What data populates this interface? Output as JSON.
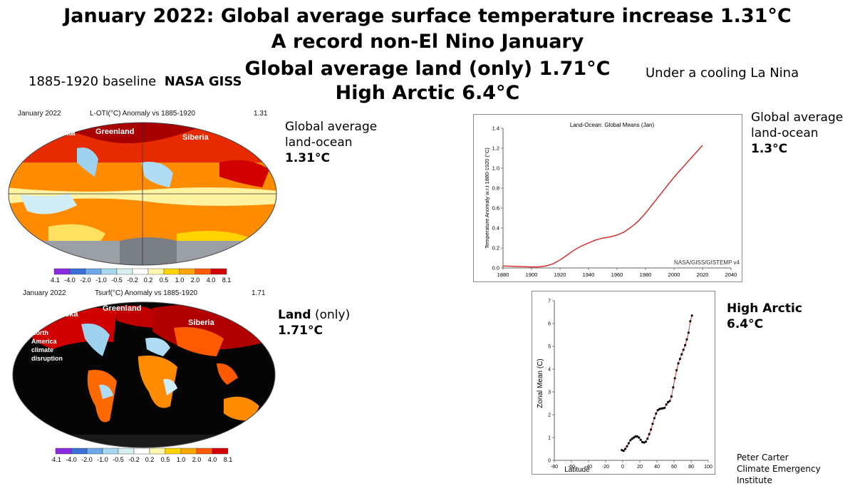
{
  "titles": [
    "January 2022: Global average surface temperature increase 1.31°C",
    "A record non-El Nino January",
    "Global average land (only) 1.71°C",
    "High Arctic 6.4°C"
  ],
  "baseline_note": {
    "plain": "1885-1920 baseline",
    "bold": "NASA GISS"
  },
  "la_nina_note": "Under a cooling La Nina",
  "map1": {
    "header_left": "January 2022",
    "header_center": "L-OTI(°C) Anomaly vs 1885-1920",
    "header_right": "1.31",
    "labels": [
      "Alaska",
      "Greenland",
      "Siberia"
    ],
    "colorbar": [
      "-4.1",
      "-4.0",
      "-2.0",
      "-1.0",
      "-0.5",
      "-0.2",
      "0.2",
      "0.5",
      "1.0",
      "2.0",
      "4.0",
      "8.1"
    ],
    "colorbar_colors": [
      "#8a2be2",
      "#3a6fd8",
      "#6fa8e8",
      "#a8d8f0",
      "#d8f0f0",
      "#ffffff",
      "#fff7b0",
      "#ffd400",
      "#ffa500",
      "#ff5a00",
      "#d40000"
    ]
  },
  "map2": {
    "header_left": "January 2022",
    "header_center": "Tsurf(°C) Anomaly vs 1885-1920",
    "header_right": "1.71",
    "labels": [
      "Alaska",
      "Greenland",
      "Siberia"
    ],
    "annotation": [
      "North",
      "America",
      "climate",
      "disruption"
    ],
    "colorbar": [
      "-4.1",
      "-4.0",
      "-2.0",
      "-1.0",
      "-0.5",
      "-0.2",
      "0.2",
      "0.5",
      "1.0",
      "2.0",
      "4.0",
      "8.1"
    ]
  },
  "side_notes": {
    "land_ocean_map": {
      "lines": [
        "Global average",
        "land-ocean"
      ],
      "value": "1.31°C"
    },
    "land_map": {
      "bold": "Land",
      "plain": " (only)",
      "value": "1.71°C"
    },
    "land_ocean_chart": {
      "lines": [
        "Global average",
        "land-ocean"
      ],
      "value": "1.3°C"
    },
    "arctic_chart": {
      "lines": [
        "High Arctic"
      ],
      "value": "6.4°C"
    }
  },
  "credit": [
    "Peter Carter",
    "Climate Emergency Institute"
  ],
  "colors": {
    "line": "#e02020",
    "points": "#000000"
  },
  "chart_data": [
    {
      "type": "line",
      "title": "Land-Ocean: Global Means (Jan)",
      "ylabel": "Temperature Anomaly w.r.t 1880-1920 (°C)",
      "xlabel": "",
      "source_label": "NASA/GISS/GISTEMP v4",
      "xlim": [
        1880,
        2040
      ],
      "ylim": [
        0,
        1.4
      ],
      "x_ticks": [
        1880,
        1900,
        1920,
        1940,
        1960,
        1980,
        2000,
        2020,
        2040
      ],
      "y_ticks": [
        "0.0",
        "0.2",
        "0.4",
        "0.6",
        "0.8",
        "1.0",
        "1.2",
        "1.4"
      ],
      "grid": false,
      "series": [
        {
          "x": [
            1880,
            1890,
            1900,
            1905,
            1910,
            1915,
            1920,
            1925,
            1930,
            1935,
            1940,
            1945,
            1950,
            1955,
            1960,
            1965,
            1970,
            1975,
            1980,
            1985,
            1990,
            1995,
            2000,
            2005,
            2010,
            2015,
            2020
          ],
          "y": [
            0.02,
            0.015,
            0.01,
            0.01,
            0.02,
            0.04,
            0.08,
            0.13,
            0.18,
            0.22,
            0.25,
            0.28,
            0.3,
            0.31,
            0.33,
            0.36,
            0.41,
            0.47,
            0.55,
            0.64,
            0.73,
            0.82,
            0.91,
            0.99,
            1.07,
            1.15,
            1.23
          ]
        }
      ]
    },
    {
      "type": "line",
      "title": "",
      "xlabel": "Latitude",
      "ylabel": "Zonal Mean (C)",
      "xlim": [
        -80,
        100
      ],
      "ylim": [
        0,
        7
      ],
      "x_ticks": [
        -80,
        -60,
        -40,
        -20,
        0,
        20,
        40,
        60,
        80,
        100
      ],
      "y_ticks": [
        "0",
        "1",
        "2",
        "3",
        "4",
        "5",
        "6",
        "7"
      ],
      "grid": false,
      "series": [
        {
          "x": [
            -1,
            1,
            3,
            5,
            7,
            9,
            11,
            13,
            15,
            17,
            19,
            21,
            23,
            25,
            27,
            29,
            31,
            33,
            35,
            37,
            39,
            41,
            43,
            45,
            47,
            49,
            51,
            53,
            55,
            57,
            59,
            61,
            63,
            65,
            67,
            69,
            71,
            73,
            75,
            77,
            79,
            81
          ],
          "y": [
            0.45,
            0.42,
            0.5,
            0.62,
            0.75,
            0.88,
            0.95,
            1.0,
            1.05,
            1.05,
            1.0,
            0.9,
            0.8,
            0.78,
            0.82,
            0.95,
            1.15,
            1.35,
            1.6,
            1.85,
            2.05,
            2.2,
            2.25,
            2.27,
            2.28,
            2.3,
            2.45,
            2.55,
            2.6,
            2.8,
            3.2,
            3.6,
            3.95,
            4.25,
            4.45,
            4.65,
            4.85,
            5.05,
            5.3,
            5.6,
            6.1,
            6.35
          ]
        }
      ]
    }
  ]
}
